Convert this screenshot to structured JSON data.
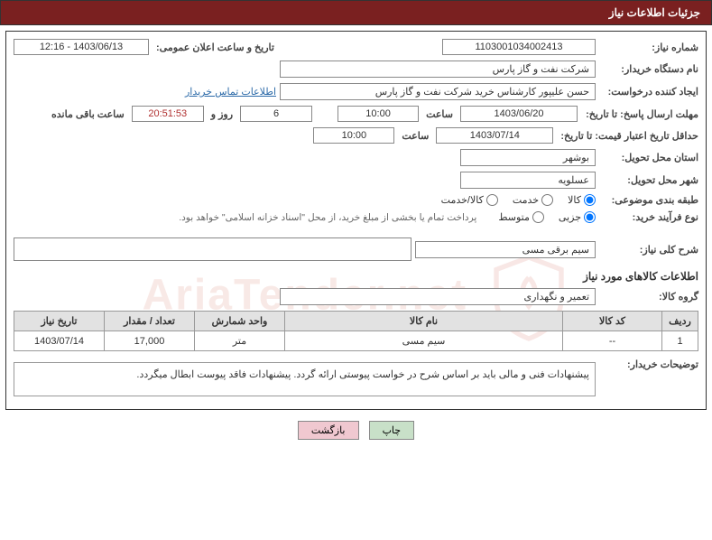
{
  "header_title": "جزئیات اطلاعات نیاز",
  "labels": {
    "req_no": "شماره نیاز:",
    "ann_date": "تاریخ و ساعت اعلان عمومی:",
    "buyer_org": "نام دستگاه خریدار:",
    "requester": "ایجاد کننده درخواست:",
    "contact_link": "اطلاعات تماس خریدار",
    "resp_deadline": "مهلت ارسال پاسخ: تا تاریخ:",
    "hour": "ساعت",
    "days_and": "روز و",
    "hours_left": "ساعت باقی مانده",
    "price_valid": "حداقل تاریخ اعتبار قیمت: تا تاریخ:",
    "delivery_prov": "استان محل تحویل:",
    "delivery_city": "شهر محل تحویل:",
    "category": "طبقه بندی موضوعی:",
    "process_type": "نوع فرآیند خرید:",
    "payment_note": "پرداخت تمام یا بخشی از مبلغ خرید، از محل \"اسناد خزانه اسلامی\" خواهد بود.",
    "gen_desc": "شرح کلی نیاز:",
    "items_title": "اطلاعات کالاهای مورد نیاز",
    "goods_group": "گروه کالا:",
    "buyer_notes": "توضیحات خریدار:"
  },
  "values": {
    "req_no": "1103001034002413",
    "ann_date": "1403/06/13 - 12:16",
    "buyer_org": "شرکت نفت و گاز پارس",
    "requester": "حسن علیپور کارشناس خرید شرکت نفت و گاز پارس",
    "resp_date": "1403/06/20",
    "resp_time": "10:00",
    "days_left": "6",
    "countdown": "20:51:53",
    "valid_date": "1403/07/14",
    "valid_time": "10:00",
    "province": "بوشهر",
    "city": "عسلویه",
    "gen_desc": "سیم برقی مسی",
    "goods_group": "تعمیر و نگهداری",
    "buyer_notes": "پیشنهادات فنی و مالی باید بر اساس شرح در خواست پیوستی ارائه گردد. پیشنهادات فاقد پیوست ابطال میگردد."
  },
  "cat_opts": {
    "kala": "کالا",
    "khedmat": "خدمت",
    "both": "کالا/خدمت"
  },
  "proc_opts": {
    "jozei": "جزیی",
    "motevaset": "متوسط"
  },
  "table": {
    "headers": {
      "row": "ردیف",
      "code": "کد کالا",
      "name": "نام کالا",
      "unit": "واحد شمارش",
      "qty": "تعداد / مقدار",
      "need_date": "تاریخ نیاز"
    },
    "rows": [
      {
        "row": "1",
        "code": "--",
        "name": "سیم مسی",
        "unit": "متر",
        "qty": "17,000",
        "need_date": "1403/07/14"
      }
    ]
  },
  "buttons": {
    "print": "چاپ",
    "back": "بازگشت"
  },
  "widths": {
    "req_no": 170,
    "ann_date": 150,
    "org": 350,
    "requester": 350,
    "date": 130,
    "time": 90,
    "days": 80,
    "countdown": 80,
    "loc": 150,
    "group": 350
  }
}
